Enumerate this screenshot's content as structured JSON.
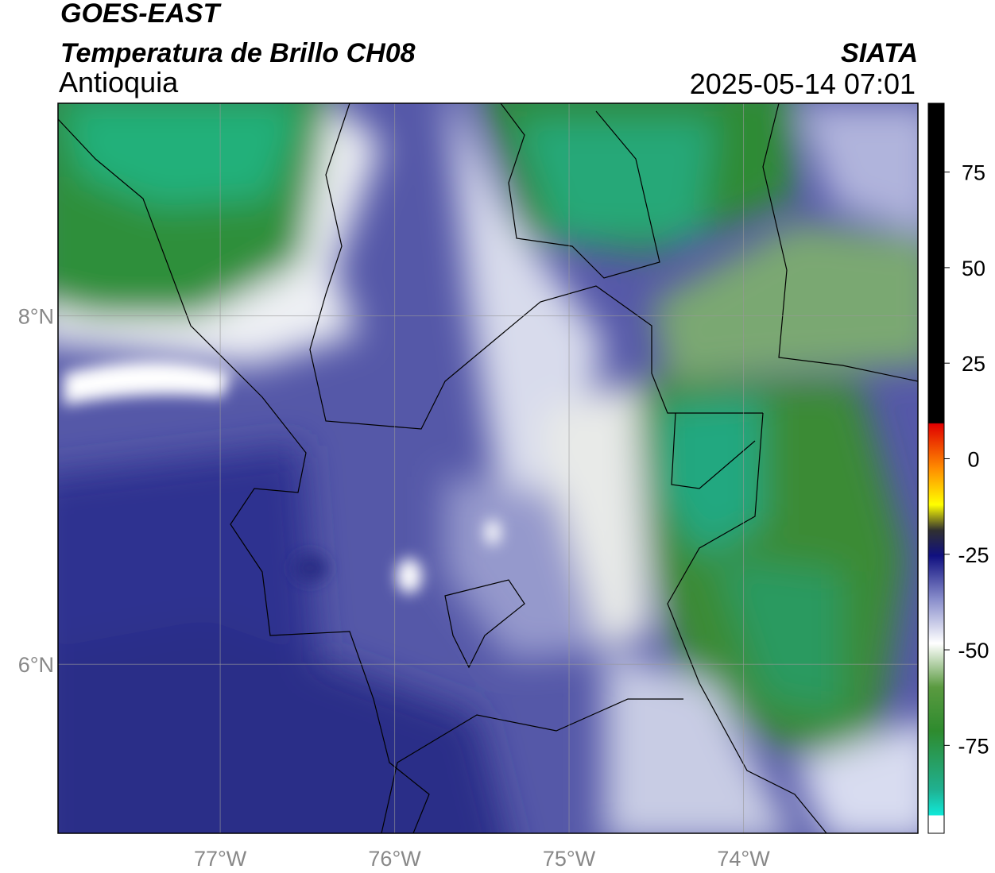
{
  "header": {
    "title": "GOES-EAST",
    "subtitle": "Temperatura de Brillo CH08",
    "region": "Antioquia",
    "source": "SIATA",
    "timestamp": "2025-05-14 07:01"
  },
  "map": {
    "xlim": [
      -77.93,
      -73.0
    ],
    "ylim": [
      5.03,
      9.22
    ],
    "xticks": [
      {
        "value": -77,
        "label": "77°W"
      },
      {
        "value": -76,
        "label": "76°W"
      },
      {
        "value": -75,
        "label": "75°W"
      },
      {
        "value": -74,
        "label": "74°W"
      }
    ],
    "yticks": [
      {
        "value": 6,
        "label": "6°N"
      },
      {
        "value": 8,
        "label": "8°N"
      }
    ],
    "grid": true
  },
  "colorbar": {
    "lim": [
      -98,
      93
    ],
    "ticks": [
      75,
      50,
      25,
      0,
      -25,
      -50,
      -75
    ]
  }
}
